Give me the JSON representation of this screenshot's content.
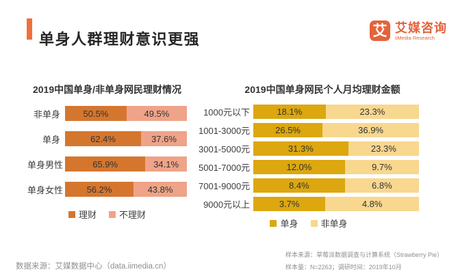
{
  "header": {
    "title": "单身人群理财意识更强",
    "logo": {
      "icon_text": "艾",
      "name_cn": "艾媒咨询",
      "name_en": "iiMedia Research"
    }
  },
  "colors": {
    "accent": "#F0703C",
    "logo_orange": "#E4633C"
  },
  "chart_data": [
    {
      "type": "bar",
      "subtype": "horizontal-stacked-100pct",
      "title": "2019中国单身/非单身网民理财情况",
      "categories": [
        "非单身",
        "单身",
        "单身男性",
        "单身女性"
      ],
      "series": [
        {
          "name": "理财",
          "color": "#D5762F",
          "values": [
            50.5,
            62.4,
            65.9,
            56.2
          ],
          "labels": [
            "50.5%",
            "62.4%",
            "65.9%",
            "56.2%"
          ]
        },
        {
          "name": "不理财",
          "color": "#EFA388",
          "values": [
            49.5,
            37.6,
            34.1,
            43.8
          ],
          "labels": [
            "49.5%",
            "37.6%",
            "34.1%",
            "43.8%"
          ]
        }
      ],
      "unit": "%",
      "legend_position": "bottom",
      "grid": false
    },
    {
      "type": "bar",
      "subtype": "horizontal-stacked-normalized-per-row",
      "title": "2019中国单身网民个人月均理财金额",
      "categories": [
        "1000元以下",
        "1001-3000元",
        "3001-5000元",
        "5001-7000元",
        "7001-9000元",
        "9000元以上"
      ],
      "series": [
        {
          "name": "单身",
          "color": "#DCA70F",
          "values": [
            18.1,
            26.5,
            31.3,
            12.0,
            8.4,
            3.7
          ],
          "labels": [
            "18.1%",
            "26.5%",
            "31.3%",
            "12.0%",
            "8.4%",
            "3.7%"
          ]
        },
        {
          "name": "非单身",
          "color": "#F8D78F",
          "values": [
            23.3,
            36.9,
            23.3,
            9.7,
            6.8,
            4.8
          ],
          "labels": [
            "23.3%",
            "36.9%",
            "23.3%",
            "9.7%",
            "6.8%",
            "4.8%"
          ]
        }
      ],
      "unit": "%",
      "legend_position": "bottom",
      "grid": false
    }
  ],
  "footer": {
    "data_source": "数据来源：艾媒数据中心（data.iimedia.cn）",
    "sample_source": "样本来源：草莓派数据调查与计算系统（Strawberry Pie）",
    "sample_info": "样本量：N=2263；调研时间：2019年10月"
  }
}
